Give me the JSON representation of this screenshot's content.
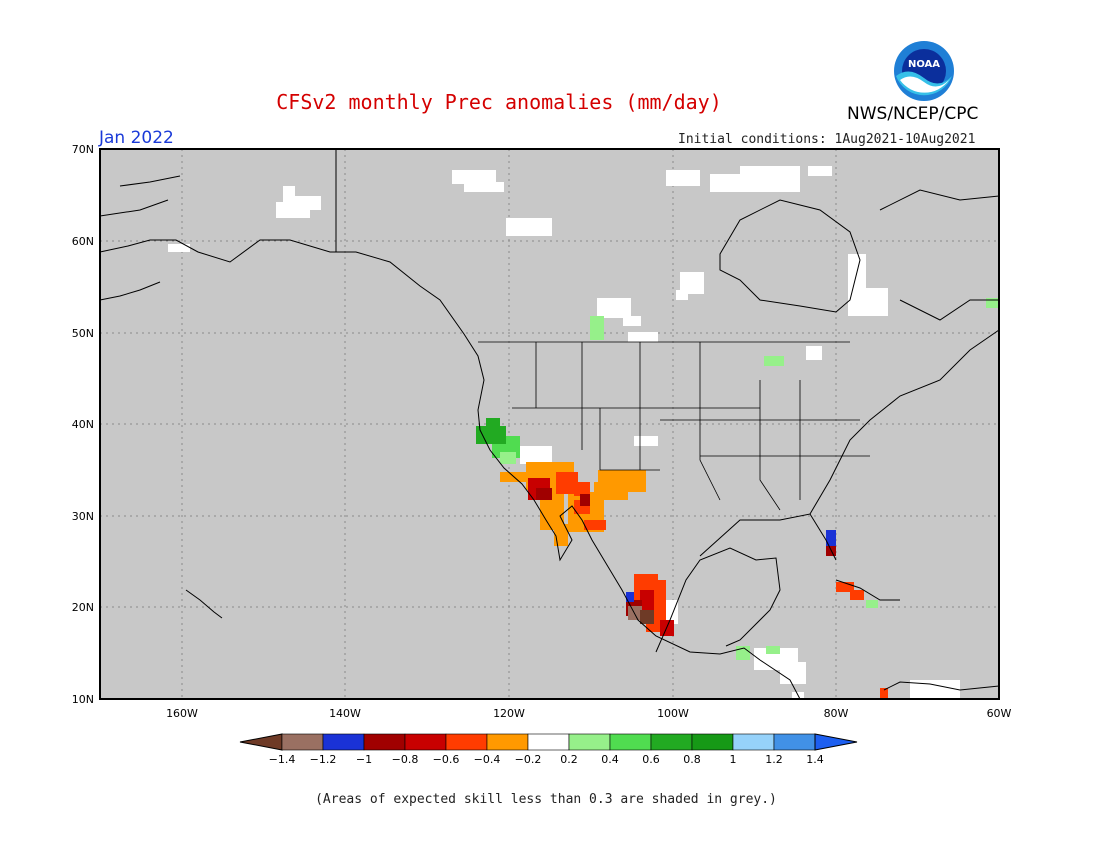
{
  "header": {
    "title": "CFSv2 monthly Prec anomalies (mm/day)",
    "agency": "NWS/NCEP/CPC",
    "logo_text": "NOAA",
    "month": "Jan 2022",
    "initial_conditions": "Initial conditions: 1Aug2021-10Aug2021"
  },
  "map": {
    "region": "North America",
    "lon_range": [
      -170,
      -60
    ],
    "lat_range": [
      10,
      70
    ],
    "background_color": "#c8c8c8",
    "gridlines": "dotted",
    "lat_labels": [
      "70N",
      "60N",
      "50N",
      "40N",
      "30N",
      "20N",
      "10N"
    ],
    "lon_labels": [
      "160W",
      "140W",
      "120W",
      "100W",
      "80W",
      "60W"
    ]
  },
  "colorbar": {
    "tick_labels": [
      "-1.4",
      "-1.2",
      "-1",
      "-0.8",
      "-0.6",
      "-0.4",
      "-0.2",
      "0.2",
      "0.4",
      "0.6",
      "0.8",
      "1",
      "1.2",
      "1.4"
    ],
    "colors": [
      "#6e3a26",
      "#9a7062",
      "#1a32d6",
      "#a00000",
      "#c80000",
      "#ff3c00",
      "#ff9900",
      "#ffffff",
      "#96f08a",
      "#50dc50",
      "#22aa22",
      "#169916",
      "#96d2fa",
      "#4191e6",
      "#1d5ff0"
    ]
  },
  "footnote": "(Areas of expected skill less than 0.3 are shaded in grey.)"
}
